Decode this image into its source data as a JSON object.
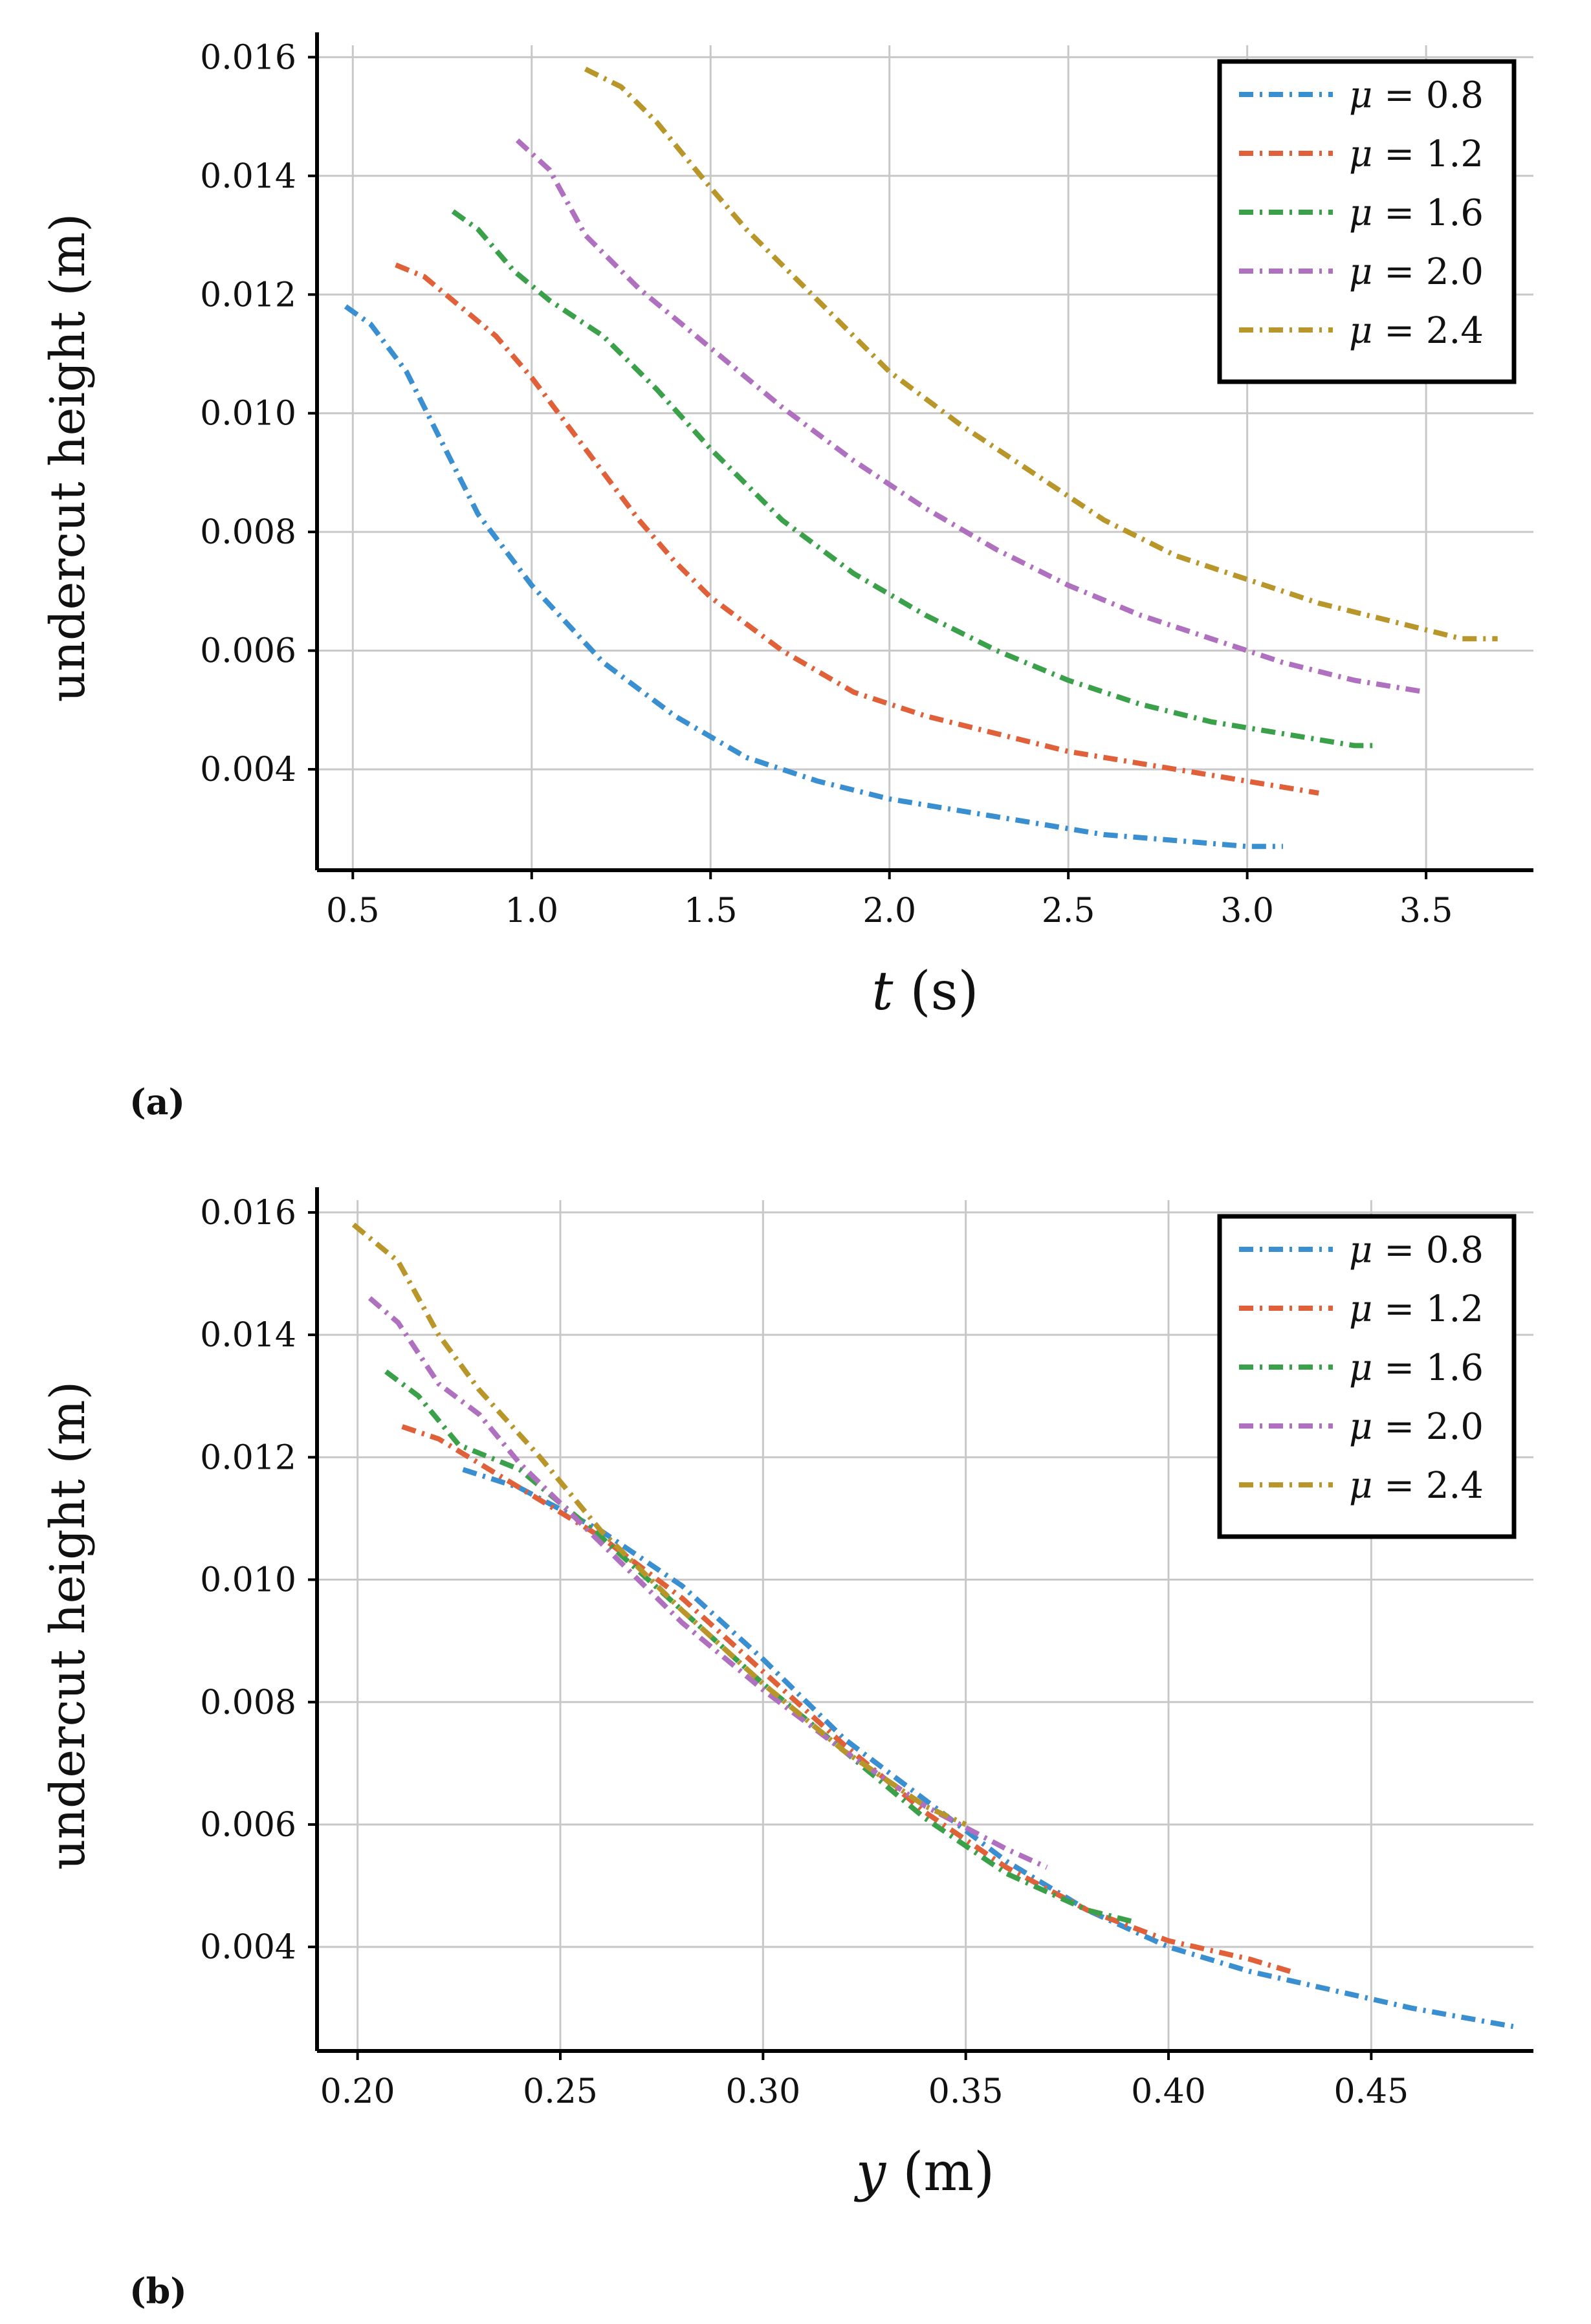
{
  "colors": {
    "mu_0_8": "#3a8fd0",
    "mu_1_2": "#e0603a",
    "mu_1_6": "#3aa04a",
    "mu_2_0": "#b070c0",
    "mu_2_4": "#b8962a"
  },
  "legend_entries": [
    {
      "symbol": "μ",
      "eq": " = 0.8",
      "key": "mu_0_8"
    },
    {
      "symbol": "μ",
      "eq": " = 1.2",
      "key": "mu_1_2"
    },
    {
      "symbol": "μ",
      "eq": " = 1.6",
      "key": "mu_1_6"
    },
    {
      "symbol": "μ",
      "eq": " = 2.0",
      "key": "mu_2_0"
    },
    {
      "symbol": "μ",
      "eq": " = 2.4",
      "key": "mu_2_4"
    }
  ],
  "chart_data": [
    {
      "type": "line",
      "panel_label": "(a)",
      "xlabel_var": "t",
      "xlabel_unit": " (s)",
      "ylabel": "undercut height (m)",
      "xlim": [
        0.4,
        3.8
      ],
      "ylim": [
        0.0023,
        0.0162
      ],
      "xticks": [
        0.5,
        1.0,
        1.5,
        2.0,
        2.5,
        3.0,
        3.5
      ],
      "xtick_labels": [
        "0.5",
        "1.0",
        "1.5",
        "2.0",
        "2.5",
        "3.0",
        "3.5"
      ],
      "yticks": [
        0.004,
        0.006,
        0.008,
        0.01,
        0.012,
        0.014,
        0.016
      ],
      "ytick_labels": [
        "0.004",
        "0.006",
        "0.008",
        "0.010",
        "0.012",
        "0.014",
        "0.016"
      ],
      "grid": true,
      "legend_position": "top-right",
      "series": [
        {
          "name": "μ = 0.8",
          "color_key": "mu_0_8",
          "x": [
            0.48,
            0.55,
            0.65,
            0.75,
            0.85,
            1.0,
            1.2,
            1.4,
            1.6,
            1.8,
            2.0,
            2.2,
            2.4,
            2.6,
            2.8,
            3.0,
            3.1
          ],
          "y": [
            0.0118,
            0.0115,
            0.0107,
            0.0095,
            0.0083,
            0.0071,
            0.0058,
            0.0049,
            0.0042,
            0.0038,
            0.0035,
            0.0033,
            0.0031,
            0.0029,
            0.0028,
            0.0027,
            0.0027
          ]
        },
        {
          "name": "μ = 1.2",
          "color_key": "mu_1_2",
          "x": [
            0.62,
            0.7,
            0.8,
            0.9,
            1.0,
            1.1,
            1.2,
            1.3,
            1.4,
            1.5,
            1.7,
            1.9,
            2.1,
            2.3,
            2.5,
            2.7,
            2.9,
            3.1,
            3.2
          ],
          "y": [
            0.0125,
            0.0123,
            0.0118,
            0.0113,
            0.0106,
            0.0098,
            0.009,
            0.0082,
            0.0075,
            0.0069,
            0.006,
            0.0053,
            0.0049,
            0.0046,
            0.0043,
            0.0041,
            0.0039,
            0.0037,
            0.0036
          ]
        },
        {
          "name": "μ = 1.6",
          "color_key": "mu_1_6",
          "x": [
            0.78,
            0.85,
            0.95,
            1.05,
            1.2,
            1.35,
            1.5,
            1.7,
            1.9,
            2.1,
            2.3,
            2.5,
            2.7,
            2.9,
            3.1,
            3.3,
            3.35
          ],
          "y": [
            0.0134,
            0.0131,
            0.0124,
            0.0119,
            0.0113,
            0.0104,
            0.0094,
            0.0082,
            0.0073,
            0.0066,
            0.006,
            0.0055,
            0.0051,
            0.0048,
            0.0046,
            0.0044,
            0.0044
          ]
        },
        {
          "name": "μ = 2.0",
          "color_key": "mu_2_0",
          "x": [
            0.96,
            1.05,
            1.15,
            1.3,
            1.5,
            1.7,
            1.9,
            2.1,
            2.3,
            2.5,
            2.7,
            2.9,
            3.1,
            3.3,
            3.5
          ],
          "y": [
            0.0146,
            0.0141,
            0.013,
            0.0121,
            0.0111,
            0.0101,
            0.0092,
            0.0084,
            0.0077,
            0.0071,
            0.0066,
            0.0062,
            0.0058,
            0.0055,
            0.0053
          ]
        },
        {
          "name": "μ = 2.4",
          "color_key": "mu_2_4",
          "x": [
            1.15,
            1.25,
            1.35,
            1.5,
            1.6,
            1.8,
            2.0,
            2.2,
            2.4,
            2.6,
            2.8,
            3.0,
            3.2,
            3.4,
            3.6,
            3.7
          ],
          "y": [
            0.0158,
            0.0155,
            0.0149,
            0.0138,
            0.0131,
            0.0119,
            0.0107,
            0.0098,
            0.009,
            0.0082,
            0.0076,
            0.0072,
            0.0068,
            0.0065,
            0.0062,
            0.0062
          ]
        }
      ]
    },
    {
      "type": "line",
      "panel_label": "(b)",
      "xlabel_var": "y",
      "xlabel_unit": " (m)",
      "ylabel": "undercut height (m)",
      "xlim": [
        0.19,
        0.49
      ],
      "ylim": [
        0.0023,
        0.0162
      ],
      "xticks": [
        0.2,
        0.25,
        0.3,
        0.35,
        0.4,
        0.45
      ],
      "xtick_labels": [
        "0.20",
        "0.25",
        "0.30",
        "0.35",
        "0.40",
        "0.45"
      ],
      "yticks": [
        0.004,
        0.006,
        0.008,
        0.01,
        0.012,
        0.014,
        0.016
      ],
      "ytick_labels": [
        "0.004",
        "0.006",
        "0.008",
        "0.010",
        "0.012",
        "0.014",
        "0.016"
      ],
      "grid": true,
      "legend_position": "top-right",
      "series": [
        {
          "name": "μ = 0.8",
          "color_key": "mu_0_8",
          "x": [
            0.226,
            0.24,
            0.26,
            0.28,
            0.3,
            0.32,
            0.34,
            0.36,
            0.38,
            0.4,
            0.42,
            0.44,
            0.46,
            0.485
          ],
          "y": [
            0.0118,
            0.0115,
            0.0108,
            0.0099,
            0.0087,
            0.0074,
            0.0064,
            0.0054,
            0.0046,
            0.004,
            0.0036,
            0.0033,
            0.003,
            0.0027
          ]
        },
        {
          "name": "μ = 1.2",
          "color_key": "mu_1_2",
          "x": [
            0.211,
            0.22,
            0.24,
            0.26,
            0.28,
            0.3,
            0.32,
            0.34,
            0.36,
            0.38,
            0.4,
            0.42,
            0.43
          ],
          "y": [
            0.0125,
            0.0123,
            0.0115,
            0.0107,
            0.0097,
            0.0085,
            0.0073,
            0.0062,
            0.0053,
            0.0046,
            0.0041,
            0.0038,
            0.0036
          ]
        },
        {
          "name": "μ = 1.6",
          "color_key": "mu_1_6",
          "x": [
            0.207,
            0.215,
            0.225,
            0.24,
            0.26,
            0.28,
            0.3,
            0.32,
            0.34,
            0.36,
            0.38,
            0.392
          ],
          "y": [
            0.0134,
            0.013,
            0.0122,
            0.0118,
            0.0107,
            0.0095,
            0.0083,
            0.0072,
            0.0061,
            0.0052,
            0.0046,
            0.0044
          ]
        },
        {
          "name": "μ = 2.0",
          "color_key": "mu_2_0",
          "x": [
            0.203,
            0.21,
            0.22,
            0.23,
            0.24,
            0.26,
            0.28,
            0.3,
            0.32,
            0.34,
            0.36,
            0.37
          ],
          "y": [
            0.0146,
            0.0142,
            0.0132,
            0.0127,
            0.0119,
            0.0106,
            0.0093,
            0.0082,
            0.0072,
            0.0063,
            0.0056,
            0.0053
          ]
        },
        {
          "name": "μ = 2.4",
          "color_key": "mu_2_4",
          "x": [
            0.199,
            0.21,
            0.22,
            0.23,
            0.245,
            0.26,
            0.28,
            0.3,
            0.32,
            0.34,
            0.35
          ],
          "y": [
            0.0158,
            0.0152,
            0.014,
            0.0131,
            0.012,
            0.0108,
            0.0095,
            0.0083,
            0.0072,
            0.0063,
            0.006
          ]
        }
      ]
    }
  ]
}
